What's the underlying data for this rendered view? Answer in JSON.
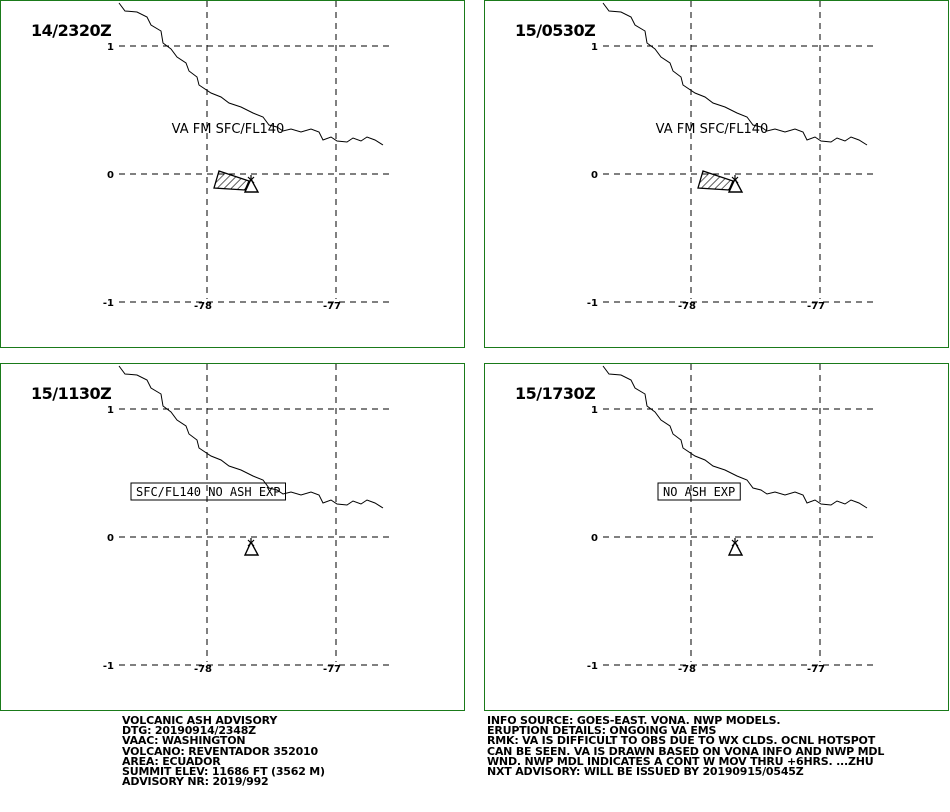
{
  "panels": [
    {
      "id": "p1",
      "time": "14/2320Z",
      "label": "VA FM SFC/FL140",
      "label_boxed": false,
      "ash_area": true
    },
    {
      "id": "p2",
      "time": "15/0530Z",
      "label": "VA FM SFC/FL140",
      "label_boxed": false,
      "ash_area": true
    },
    {
      "id": "p3",
      "time": "15/1130Z",
      "label": "SFC/FL140 NO ASH EXP",
      "label_boxed": true,
      "ash_area": false
    },
    {
      "id": "p4",
      "time": "15/1730Z",
      "label": "NO ASH EXP",
      "label_boxed": true,
      "ash_area": false
    }
  ],
  "axes": {
    "lat_labels": [
      "1",
      "0",
      "-1"
    ],
    "lon_labels": [
      "-78",
      "-77"
    ]
  },
  "icons": {
    "volcano": "volcano-icon",
    "ash_area": "hatched-polygon"
  },
  "colors": {
    "frame": "#1a7a1a",
    "lines": "#000000"
  },
  "advisory_left": [
    "VOLCANIC ASH ADVISORY",
    "DTG: 20190914/2348Z",
    "VAAC: WASHINGTON",
    "VOLCANO: REVENTADOR 352010",
    "AREA: ECUADOR",
    "SUMMIT ELEV: 11686 FT (3562 M)",
    "ADVISORY NR: 2019/992"
  ],
  "advisory_right": [
    "INFO SOURCE: GOES-EAST. VONA. NWP MODELS.",
    "ERUPTION DETAILS: ONGOING VA EMS",
    "RMK: VA IS DIFFICULT TO OBS DUE TO WX CLDS. OCNL HOTSPOT",
    "CAN BE SEEN. VA IS DRAWN BASED ON VONA INFO AND NWP MDL",
    "WND. NWP MDL INDICATES A CONT W MOV THRU +6HRS. ...ZHU",
    "NXT ADVISORY: WILL BE ISSUED BY 20190915/0545Z"
  ]
}
